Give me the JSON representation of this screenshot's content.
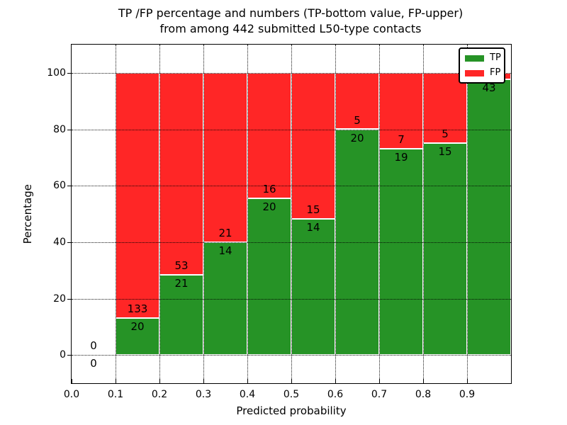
{
  "title": {
    "line1": "TP /FP percentage and numbers (TP-bottom value, FP-upper)",
    "line2": "from among 442 submitted L50-type contacts"
  },
  "chart_data": {
    "type": "bar",
    "subtype": "100-percent-stacked-histogram",
    "title": "TP /FP percentage and numbers (TP-bottom value, FP-upper) from among 442 submitted L50-type contacts",
    "xlabel": "Predicted probability",
    "ylabel": "Percentage",
    "xlim": [
      0.0,
      1.0
    ],
    "ylim": [
      -10,
      110
    ],
    "grid": true,
    "grid_style": "dotted",
    "x_ticks": [
      0.0,
      0.1,
      0.2,
      0.3,
      0.4,
      0.5,
      0.6,
      0.7,
      0.8,
      0.9
    ],
    "x_tick_labels": [
      "0.0",
      "0.1",
      "0.2",
      "0.3",
      "0.4",
      "0.5",
      "0.6",
      "0.7",
      "0.8",
      "0.9"
    ],
    "y_ticks": [
      0,
      20,
      40,
      60,
      80,
      100
    ],
    "y_tick_labels": [
      "0",
      "20",
      "40",
      "60",
      "80",
      "100"
    ],
    "colors": {
      "tp": "#269326",
      "fp": "#ff2626",
      "bar_edge": "#ffffff"
    },
    "legend": {
      "position": "upper-right",
      "entries": [
        {
          "label": "TP",
          "color": "#269326"
        },
        {
          "label": "FP",
          "color": "#ff2626"
        }
      ]
    },
    "bins": [
      {
        "x0": 0.0,
        "x1": 0.1,
        "tp": 0,
        "fp": 0,
        "tp_pct": 0.0,
        "draw_bar": false,
        "fp_label": "0",
        "tp_label": "0"
      },
      {
        "x0": 0.1,
        "x1": 0.2,
        "tp": 20,
        "fp": 133,
        "tp_pct": 13.07,
        "draw_bar": true,
        "fp_label": "133",
        "tp_label": "20"
      },
      {
        "x0": 0.2,
        "x1": 0.3,
        "tp": 21,
        "fp": 53,
        "tp_pct": 28.38,
        "draw_bar": true,
        "fp_label": "53",
        "tp_label": "21"
      },
      {
        "x0": 0.3,
        "x1": 0.4,
        "tp": 14,
        "fp": 21,
        "tp_pct": 40.0,
        "draw_bar": true,
        "fp_label": "21",
        "tp_label": "14"
      },
      {
        "x0": 0.4,
        "x1": 0.5,
        "tp": 20,
        "fp": 16,
        "tp_pct": 55.56,
        "draw_bar": true,
        "fp_label": "16",
        "tp_label": "20"
      },
      {
        "x0": 0.5,
        "x1": 0.6,
        "tp": 14,
        "fp": 15,
        "tp_pct": 48.28,
        "draw_bar": true,
        "fp_label": "15",
        "tp_label": "14"
      },
      {
        "x0": 0.6,
        "x1": 0.7,
        "tp": 20,
        "fp": 5,
        "tp_pct": 80.0,
        "draw_bar": true,
        "fp_label": "5",
        "tp_label": "20"
      },
      {
        "x0": 0.7,
        "x1": 0.8,
        "tp": 19,
        "fp": 7,
        "tp_pct": 73.08,
        "draw_bar": true,
        "fp_label": "7",
        "tp_label": "19"
      },
      {
        "x0": 0.8,
        "x1": 0.9,
        "tp": 15,
        "fp": 5,
        "tp_pct": 75.0,
        "draw_bar": true,
        "fp_label": "5",
        "tp_label": "15"
      },
      {
        "x0": 0.9,
        "x1": 1.0,
        "tp": 43,
        "fp": 1,
        "tp_pct": 97.73,
        "draw_bar": true,
        "fp_label": null,
        "tp_label": "43"
      }
    ]
  }
}
